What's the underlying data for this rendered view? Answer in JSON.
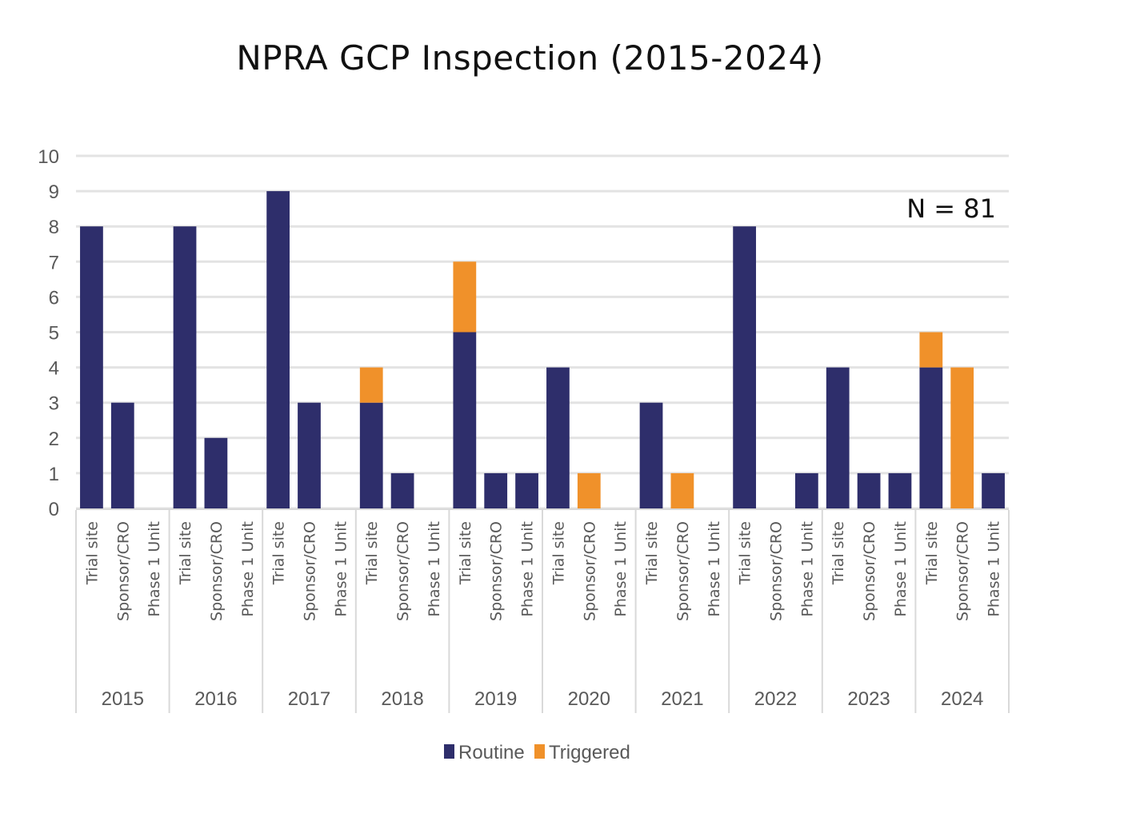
{
  "chart_data": {
    "type": "bar",
    "stacked": true,
    "title": "NPRA GCP Inspection (2015-2024)",
    "annotation": "N = 81",
    "xlabel": "",
    "ylabel": "",
    "ylim": [
      0,
      10
    ],
    "yticks": [
      0,
      1,
      2,
      3,
      4,
      5,
      6,
      7,
      8,
      9,
      10
    ],
    "grid": true,
    "legend_position": "bottom",
    "groups": [
      "2015",
      "2016",
      "2017",
      "2018",
      "2019",
      "2020",
      "2021",
      "2022",
      "2023",
      "2024"
    ],
    "subcategories": [
      "Trial site",
      "Sponsor/CRO",
      "Phase 1 Unit"
    ],
    "series": [
      {
        "name": "Routine",
        "color": "#2e2e6b",
        "values": [
          [
            8,
            3,
            0
          ],
          [
            8,
            2,
            0
          ],
          [
            9,
            3,
            0
          ],
          [
            3,
            1,
            0
          ],
          [
            5,
            1,
            1
          ],
          [
            4,
            0,
            0
          ],
          [
            3,
            0,
            0
          ],
          [
            8,
            0,
            1
          ],
          [
            4,
            1,
            1
          ],
          [
            4,
            0,
            1
          ]
        ]
      },
      {
        "name": "Triggered",
        "color": "#f0912a",
        "values": [
          [
            0,
            0,
            0
          ],
          [
            0,
            0,
            0
          ],
          [
            0,
            0,
            0
          ],
          [
            1,
            0,
            0
          ],
          [
            2,
            0,
            0
          ],
          [
            0,
            1,
            0
          ],
          [
            0,
            1,
            0
          ],
          [
            0,
            0,
            0
          ],
          [
            0,
            0,
            0
          ],
          [
            1,
            4,
            0
          ]
        ]
      }
    ]
  }
}
